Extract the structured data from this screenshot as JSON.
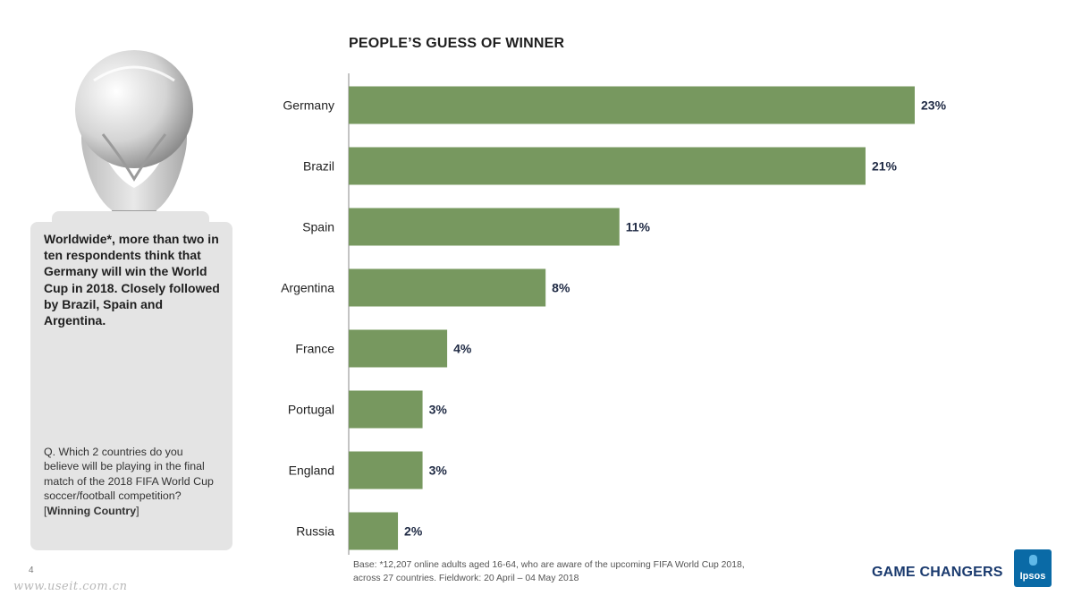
{
  "page": {
    "page_number": "4",
    "watermark": "www.useit.com.cn",
    "tagline": "GAME CHANGERS",
    "logo_text": "Ipsos"
  },
  "callout": {
    "headline": "Worldwide*, more than two in ten respondents think that Germany will win the World Cup in 2018. Closely followed by Brazil, Spain and Argentina.",
    "question_text": "Q. Which 2 countries do you believe will be playing in the final match of the 2018 FIFA World Cup soccer/football competition? [",
    "question_bold": "Winning Country",
    "question_end": "]"
  },
  "footnote": {
    "line1": "Base: *12,207 online adults aged 16-64, who are aware of the upcoming FIFA World Cup 2018,",
    "line2": "across 27 countries. Fieldwork:  20 April – 04 May 2018"
  },
  "colors": {
    "bar": "#77985f",
    "axis": "#888888",
    "label": "#222222",
    "value_label": "#1f2a44",
    "callout_bg": "#e4e4e4",
    "tagline": "#1a3a6e",
    "logo": "#0a6aa6"
  },
  "chart_data": {
    "type": "bar",
    "orientation": "horizontal",
    "title": "PEOPLE’S GUESS OF WINNER",
    "categories": [
      "Germany",
      "Brazil",
      "Spain",
      "Argentina",
      "France",
      "Portugal",
      "England",
      "Russia"
    ],
    "values": [
      23,
      21,
      11,
      8,
      4,
      3,
      3,
      2
    ],
    "value_labels": [
      "23%",
      "21%",
      "11%",
      "8%",
      "4%",
      "3%",
      "3%",
      "2%"
    ],
    "unit": "%",
    "xlim": [
      0,
      23
    ],
    "grid": false,
    "legend": "none"
  }
}
